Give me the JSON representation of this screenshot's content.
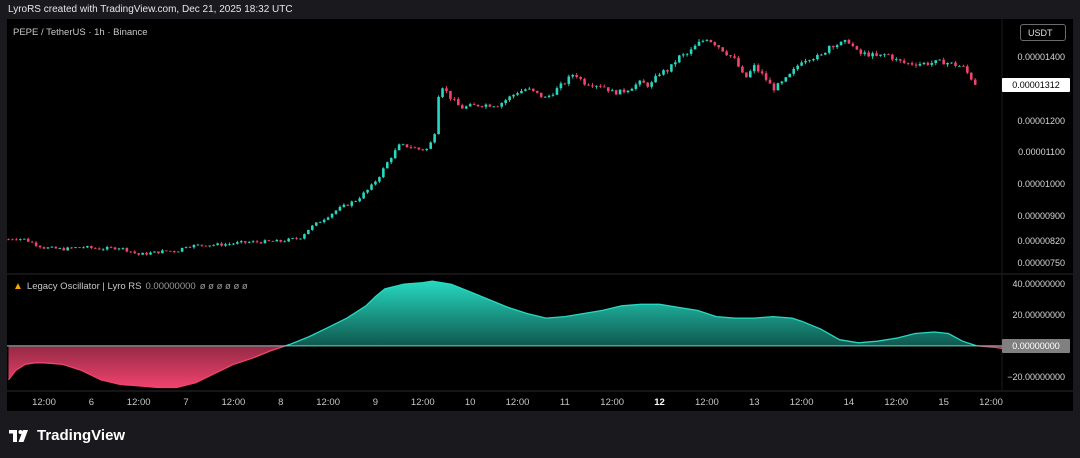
{
  "caption": "LyroRS created with TradingView.com, Dec 21, 2025 18:32 UTC",
  "symbol": "PEPE / TetherUS · 1h · Binance",
  "currency": "USDT",
  "indicator": {
    "name": "Legacy Oscillator | Lyro RS",
    "value": "0.00000000",
    "extra": "ø ø ø ø ø ø"
  },
  "brand": "TradingView",
  "price_axis": {
    "ticks": [
      {
        "label": "0.00001400",
        "value": 1.4e-05
      },
      {
        "label": "0.00001200",
        "value": 1.2e-05
      },
      {
        "label": "0.00001100",
        "value": 1.1e-05
      },
      {
        "label": "0.00001000",
        "value": 1e-05
      },
      {
        "label": "0.00000900",
        "value": 9e-06
      },
      {
        "label": "0.00000820",
        "value": 8.2e-06
      },
      {
        "label": "0.00000750",
        "value": 7.5e-06
      }
    ],
    "current": {
      "label": "0.00001312",
      "value": 1.312e-05
    }
  },
  "osc_axis": {
    "ticks": [
      {
        "label": "40.00000000",
        "value": 40
      },
      {
        "label": "20.00000000",
        "value": 20
      },
      {
        "label": "−20.00000000",
        "value": -20
      }
    ],
    "current": {
      "label": "0.00000000",
      "value": 0
    }
  },
  "time_axis": [
    {
      "label": "12:00",
      "x": 0.0,
      "bold": false
    },
    {
      "label": "6",
      "x": 0.5,
      "bold": false
    },
    {
      "label": "12:00",
      "x": 1.0,
      "bold": false
    },
    {
      "label": "7",
      "x": 1.5,
      "bold": false
    },
    {
      "label": "12:00",
      "x": 2.0,
      "bold": false
    },
    {
      "label": "8",
      "x": 2.5,
      "bold": false
    },
    {
      "label": "12:00",
      "x": 3.0,
      "bold": false
    },
    {
      "label": "9",
      "x": 3.5,
      "bold": false
    },
    {
      "label": "12:00",
      "x": 4.0,
      "bold": false
    },
    {
      "label": "10",
      "x": 4.5,
      "bold": false
    },
    {
      "label": "12:00",
      "x": 5.0,
      "bold": false
    },
    {
      "label": "11",
      "x": 5.5,
      "bold": false
    },
    {
      "label": "12:00",
      "x": 6.0,
      "bold": false
    },
    {
      "label": "12",
      "x": 6.5,
      "bold": true
    },
    {
      "label": "12:00",
      "x": 7.0,
      "bold": false
    },
    {
      "label": "13",
      "x": 7.5,
      "bold": false
    },
    {
      "label": "12:00",
      "x": 8.0,
      "bold": false
    },
    {
      "label": "14",
      "x": 8.5,
      "bold": false
    },
    {
      "label": "12:00",
      "x": 9.0,
      "bold": false
    },
    {
      "label": "15",
      "x": 9.5,
      "bold": false
    },
    {
      "label": "12:00",
      "x": 10.0,
      "bold": false
    }
  ],
  "colors": {
    "up": "#26d9c0",
    "down": "#f0436e",
    "zero_line": "#5fd6cc",
    "background": "#000000"
  },
  "chart_data": [
    {
      "type": "candlestick",
      "title": "PEPE / TetherUS · 1h · Binance",
      "x_unit": "days since Dec 5 12:00",
      "ylim": [
        7.2e-06,
        1.52e-05
      ],
      "close_path": [
        [
          -0.375,
          8.26e-06
        ],
        [
          -0.3,
          8.3e-06
        ],
        [
          -0.2,
          8.26e-06
        ],
        [
          -0.1,
          8.12e-06
        ],
        [
          0.0,
          8e-06
        ],
        [
          0.2,
          7.95e-06
        ],
        [
          0.4,
          8.02e-06
        ],
        [
          0.6,
          7.96e-06
        ],
        [
          0.8,
          8e-06
        ],
        [
          0.9,
          7.9e-06
        ],
        [
          1.0,
          7.78e-06
        ],
        [
          1.1,
          7.82e-06
        ],
        [
          1.3,
          7.9e-06
        ],
        [
          1.4,
          7.88e-06
        ],
        [
          1.5,
          8.05e-06
        ],
        [
          1.7,
          8.08e-06
        ],
        [
          1.9,
          8.1e-06
        ],
        [
          2.1,
          8.16e-06
        ],
        [
          2.3,
          8.18e-06
        ],
        [
          2.5,
          8.2e-06
        ],
        [
          2.7,
          8.3e-06
        ],
        [
          2.8,
          8.6e-06
        ],
        [
          2.9,
          8.8e-06
        ],
        [
          3.0,
          9e-06
        ],
        [
          3.1,
          9.2e-06
        ],
        [
          3.3,
          9.5e-06
        ],
        [
          3.45,
          9.9e-06
        ],
        [
          3.55,
          1.03e-05
        ],
        [
          3.65,
          1.08e-05
        ],
        [
          3.75,
          1.12e-05
        ],
        [
          3.85,
          1.12e-05
        ],
        [
          3.95,
          1.11e-05
        ],
        [
          4.05,
          1.11e-05
        ],
        [
          4.12,
          1.15e-05
        ],
        [
          4.18,
          1.32e-05
        ],
        [
          4.3,
          1.27e-05
        ],
        [
          4.4,
          1.24e-05
        ],
        [
          4.6,
          1.25e-05
        ],
        [
          4.8,
          1.25e-05
        ],
        [
          5.0,
          1.29e-05
        ],
        [
          5.1,
          1.3e-05
        ],
        [
          5.3,
          1.27e-05
        ],
        [
          5.5,
          1.32e-05
        ],
        [
          5.6,
          1.35e-05
        ],
        [
          5.7,
          1.32e-05
        ],
        [
          5.9,
          1.31e-05
        ],
        [
          6.0,
          1.29e-05
        ],
        [
          6.1,
          1.29e-05
        ],
        [
          6.3,
          1.32e-05
        ],
        [
          6.4,
          1.31e-05
        ],
        [
          6.5,
          1.35e-05
        ],
        [
          6.6,
          1.36e-05
        ],
        [
          6.7,
          1.4e-05
        ],
        [
          6.8,
          1.41e-05
        ],
        [
          6.9,
          1.44e-05
        ],
        [
          7.0,
          1.46e-05
        ],
        [
          7.1,
          1.44e-05
        ],
        [
          7.3,
          1.39e-05
        ],
        [
          7.4,
          1.33e-05
        ],
        [
          7.5,
          1.37e-05
        ],
        [
          7.6,
          1.34e-05
        ],
        [
          7.7,
          1.3e-05
        ],
        [
          7.8,
          1.32e-05
        ],
        [
          7.9,
          1.35e-05
        ],
        [
          8.0,
          1.39e-05
        ],
        [
          8.1,
          1.4e-05
        ],
        [
          8.2,
          1.4e-05
        ],
        [
          8.3,
          1.44e-05
        ],
        [
          8.4,
          1.44e-05
        ],
        [
          8.5,
          1.45e-05
        ],
        [
          8.6,
          1.41e-05
        ],
        [
          8.7,
          1.41e-05
        ],
        [
          8.8,
          1.4e-05
        ],
        [
          8.9,
          1.41e-05
        ],
        [
          9.0,
          1.39e-05
        ],
        [
          9.1,
          1.38e-05
        ],
        [
          9.3,
          1.38e-05
        ],
        [
          9.5,
          1.385e-05
        ],
        [
          9.7,
          1.37e-05
        ],
        [
          9.85,
          1.31e-05
        ]
      ]
    },
    {
      "type": "area",
      "title": "Legacy Oscillator | Lyro RS",
      "x_unit": "days since Dec 5 12:00",
      "ylim": [
        -28,
        46
      ],
      "values": [
        [
          -0.375,
          -22
        ],
        [
          -0.3,
          -16
        ],
        [
          -0.2,
          -12
        ],
        [
          -0.1,
          -11
        ],
        [
          0.0,
          -11
        ],
        [
          0.2,
          -12
        ],
        [
          0.4,
          -16
        ],
        [
          0.6,
          -22
        ],
        [
          0.8,
          -25
        ],
        [
          1.0,
          -26
        ],
        [
          1.2,
          -27
        ],
        [
          1.4,
          -27
        ],
        [
          1.6,
          -24
        ],
        [
          1.8,
          -18
        ],
        [
          2.0,
          -12
        ],
        [
          2.2,
          -8
        ],
        [
          2.4,
          -3
        ],
        [
          2.6,
          1
        ],
        [
          2.8,
          6
        ],
        [
          3.0,
          12
        ],
        [
          3.2,
          18
        ],
        [
          3.4,
          26
        ],
        [
          3.5,
          32
        ],
        [
          3.6,
          37
        ],
        [
          3.8,
          40
        ],
        [
          4.0,
          41
        ],
        [
          4.1,
          42
        ],
        [
          4.3,
          40
        ],
        [
          4.5,
          35
        ],
        [
          4.7,
          30
        ],
        [
          4.9,
          25
        ],
        [
          5.1,
          21
        ],
        [
          5.3,
          18
        ],
        [
          5.5,
          19
        ],
        [
          5.7,
          21
        ],
        [
          5.9,
          23
        ],
        [
          6.1,
          26
        ],
        [
          6.3,
          27
        ],
        [
          6.5,
          27
        ],
        [
          6.7,
          25
        ],
        [
          6.9,
          23
        ],
        [
          7.1,
          19
        ],
        [
          7.3,
          18
        ],
        [
          7.5,
          18
        ],
        [
          7.7,
          19
        ],
        [
          7.9,
          18
        ],
        [
          8.0,
          16
        ],
        [
          8.2,
          11
        ],
        [
          8.4,
          4
        ],
        [
          8.6,
          2
        ],
        [
          8.8,
          3
        ],
        [
          9.0,
          5
        ],
        [
          9.2,
          8
        ],
        [
          9.4,
          9
        ],
        [
          9.55,
          8
        ],
        [
          9.7,
          3
        ],
        [
          9.85,
          0
        ],
        [
          10.05,
          -1
        ],
        [
          10.25,
          -3
        ],
        [
          10.35,
          -2
        ]
      ]
    }
  ]
}
